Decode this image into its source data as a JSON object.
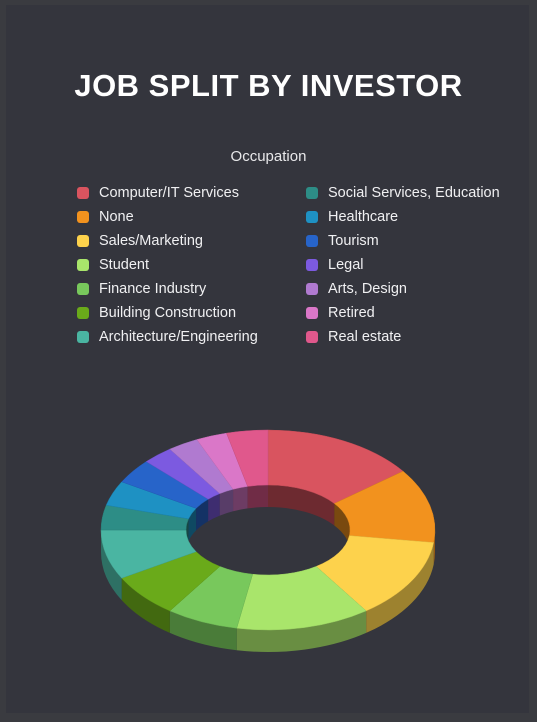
{
  "chart_data": {
    "type": "pie",
    "title": "JOB SPLIT BY INVESTOR",
    "subtitle": "Occupation",
    "legend_position": "top",
    "values_approximate": true,
    "slices": [
      {
        "label": "Computer/IT Services",
        "value": 15,
        "color": "#d9545f"
      },
      {
        "label": "None",
        "value": 12,
        "color": "#f2921e"
      },
      {
        "label": "Sales/Marketing",
        "value": 13,
        "color": "#fdd24c"
      },
      {
        "label": "Student",
        "value": 13,
        "color": "#a9e56b"
      },
      {
        "label": "Finance Industry",
        "value": 7,
        "color": "#78c85c"
      },
      {
        "label": "Building Construction",
        "value": 7,
        "color": "#6aaa1a"
      },
      {
        "label": "Architecture/Engineering",
        "value": 8,
        "color": "#4ab5a2"
      },
      {
        "label": "Social Services, Education",
        "value": 4,
        "color": "#2d8d86"
      },
      {
        "label": "Healthcare",
        "value": 4,
        "color": "#1e91c3"
      },
      {
        "label": "Tourism",
        "value": 4,
        "color": "#2764c9"
      },
      {
        "label": "Legal",
        "value": 3,
        "color": "#7c5ae0"
      },
      {
        "label": "Arts, Design",
        "value": 3,
        "color": "#b07ad0"
      },
      {
        "label": "Retired",
        "value": 3,
        "color": "#da77c8"
      },
      {
        "label": "Real estate",
        "value": 4,
        "color": "#e0588c"
      }
    ]
  }
}
